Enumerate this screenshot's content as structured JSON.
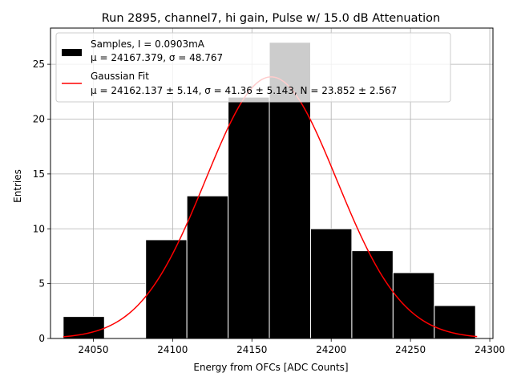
{
  "chart_data": {
    "type": "bar",
    "title": "Run 2895, channel7, hi gain, Pulse w/ 15.0 dB Attenuation",
    "xlabel": "Energy from OFCs [ADC Counts]",
    "ylabel": "Entries",
    "xlim": [
      24023,
      24302
    ],
    "ylim": [
      0,
      28.3
    ],
    "grid": true,
    "legend_position": "top-left",
    "x_ticks": [
      24050,
      24100,
      24150,
      24200,
      24250,
      24300
    ],
    "y_ticks": [
      0,
      5,
      10,
      15,
      20,
      25
    ],
    "bin_edges": [
      24031,
      24057,
      24083,
      24109,
      24135,
      24161,
      24187,
      24213,
      24239,
      24265,
      24291
    ],
    "counts": [
      2,
      0,
      9,
      13,
      22,
      27,
      10,
      8,
      6,
      3
    ],
    "series": [
      {
        "name": "Samples, I = 0.0903mA",
        "name_line2": "μ = 24167.379, σ = 48.767",
        "kind": "histogram",
        "color": "#000000",
        "edgecolor": "#ffffff"
      },
      {
        "name": "Gaussian Fit",
        "name_line2": "μ = 24162.137 ± 5.14, σ = 41.36 ± 5.143, N = 23.852 ± 2.567",
        "kind": "line",
        "color": "#ff0000",
        "mu": 24162.137,
        "sigma": 41.36,
        "N": 23.852,
        "x_range": [
          24031,
          24292
        ]
      }
    ]
  }
}
